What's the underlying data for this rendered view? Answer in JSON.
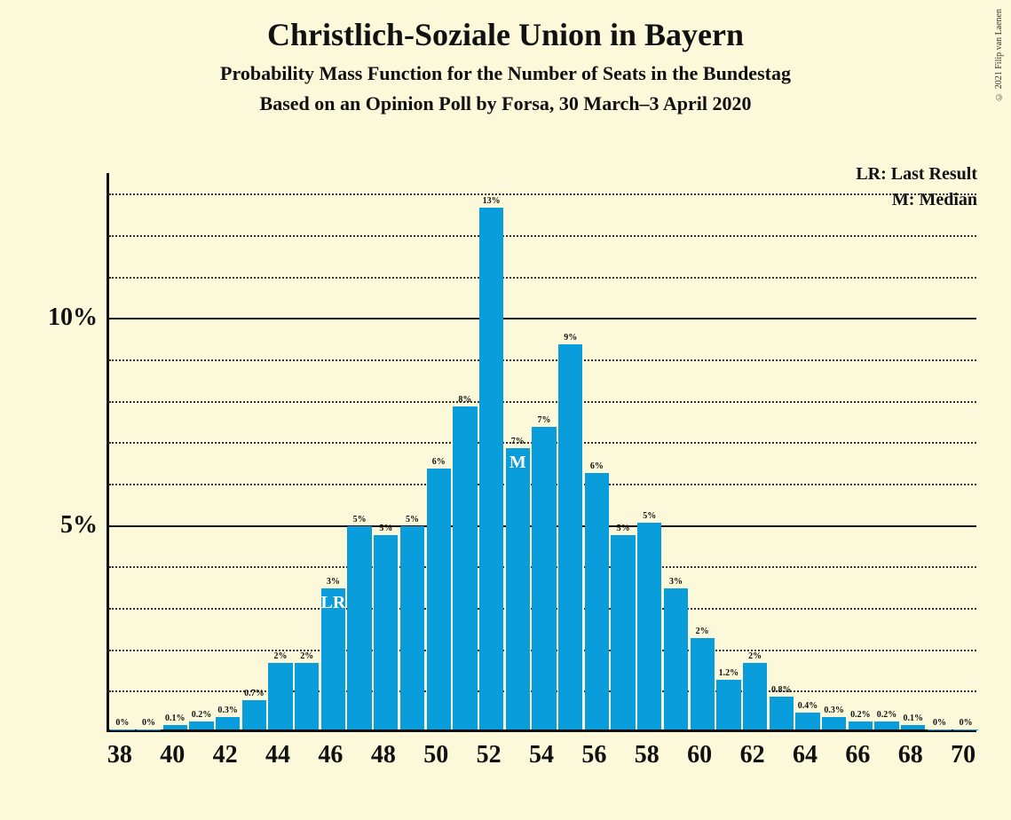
{
  "copyright": "© 2021 Filip van Laenen",
  "title": "Christlich-Soziale Union in Bayern",
  "subtitle1": "Probability Mass Function for the Number of Seats in the Bundestag",
  "subtitle2": "Based on an Opinion Poll by Forsa, 30 March–3 April 2020",
  "legend": {
    "lr": "LR: Last Result",
    "m": "M: Median"
  },
  "chart": {
    "type": "bar",
    "background_color": "#fcf8da",
    "bar_color": "#0a9ddb",
    "axis_color": "#111111",
    "grid_dotted_color": "#333333",
    "text_color": "#111111",
    "marker_text_color": "#ffffff",
    "xmin": 38,
    "xmax": 70,
    "ymin": 0,
    "ymax": 13.5,
    "y_major_ticks": [
      5,
      10
    ],
    "y_minor_step": 1,
    "x_tick_step": 2,
    "x_tick_labels": [
      "38",
      "40",
      "42",
      "44",
      "46",
      "48",
      "50",
      "52",
      "54",
      "56",
      "58",
      "60",
      "62",
      "64",
      "66",
      "68",
      "70"
    ],
    "y_tick_labels": [
      "5%",
      "10%"
    ],
    "bar_gap_ratio": 0.08,
    "bars": [
      {
        "x": 38,
        "value": 0.0,
        "label": "0%"
      },
      {
        "x": 39,
        "value": 0.0,
        "label": "0%"
      },
      {
        "x": 40,
        "value": 0.1,
        "label": "0.1%"
      },
      {
        "x": 41,
        "value": 0.2,
        "label": "0.2%"
      },
      {
        "x": 42,
        "value": 0.3,
        "label": "0.3%"
      },
      {
        "x": 43,
        "value": 0.7,
        "label": "0.7%"
      },
      {
        "x": 44,
        "value": 1.6,
        "label": "2%"
      },
      {
        "x": 45,
        "value": 1.6,
        "label": "2%"
      },
      {
        "x": 46,
        "value": 3.4,
        "label": "3%",
        "marker": "LR"
      },
      {
        "x": 47,
        "value": 4.9,
        "label": "5%"
      },
      {
        "x": 48,
        "value": 4.7,
        "label": "5%"
      },
      {
        "x": 49,
        "value": 4.9,
        "label": "5%"
      },
      {
        "x": 50,
        "value": 6.3,
        "label": "6%"
      },
      {
        "x": 51,
        "value": 7.8,
        "label": "8%"
      },
      {
        "x": 52,
        "value": 12.6,
        "label": "13%"
      },
      {
        "x": 53,
        "value": 6.8,
        "label": "7%",
        "marker": "M"
      },
      {
        "x": 54,
        "value": 7.3,
        "label": "7%"
      },
      {
        "x": 55,
        "value": 9.3,
        "label": "9%"
      },
      {
        "x": 56,
        "value": 6.2,
        "label": "6%"
      },
      {
        "x": 57,
        "value": 4.7,
        "label": "5%"
      },
      {
        "x": 58,
        "value": 5.0,
        "label": "5%"
      },
      {
        "x": 59,
        "value": 3.4,
        "label": "3%"
      },
      {
        "x": 60,
        "value": 2.2,
        "label": "2%"
      },
      {
        "x": 61,
        "value": 1.2,
        "label": "1.2%"
      },
      {
        "x": 62,
        "value": 1.6,
        "label": "2%"
      },
      {
        "x": 63,
        "value": 0.8,
        "label": "0.8%"
      },
      {
        "x": 64,
        "value": 0.4,
        "label": "0.4%"
      },
      {
        "x": 65,
        "value": 0.3,
        "label": "0.3%"
      },
      {
        "x": 66,
        "value": 0.2,
        "label": "0.2%"
      },
      {
        "x": 67,
        "value": 0.2,
        "label": "0.2%"
      },
      {
        "x": 68,
        "value": 0.1,
        "label": "0.1%"
      },
      {
        "x": 69,
        "value": 0.0,
        "label": "0%"
      },
      {
        "x": 70,
        "value": 0.0,
        "label": "0%"
      }
    ]
  }
}
